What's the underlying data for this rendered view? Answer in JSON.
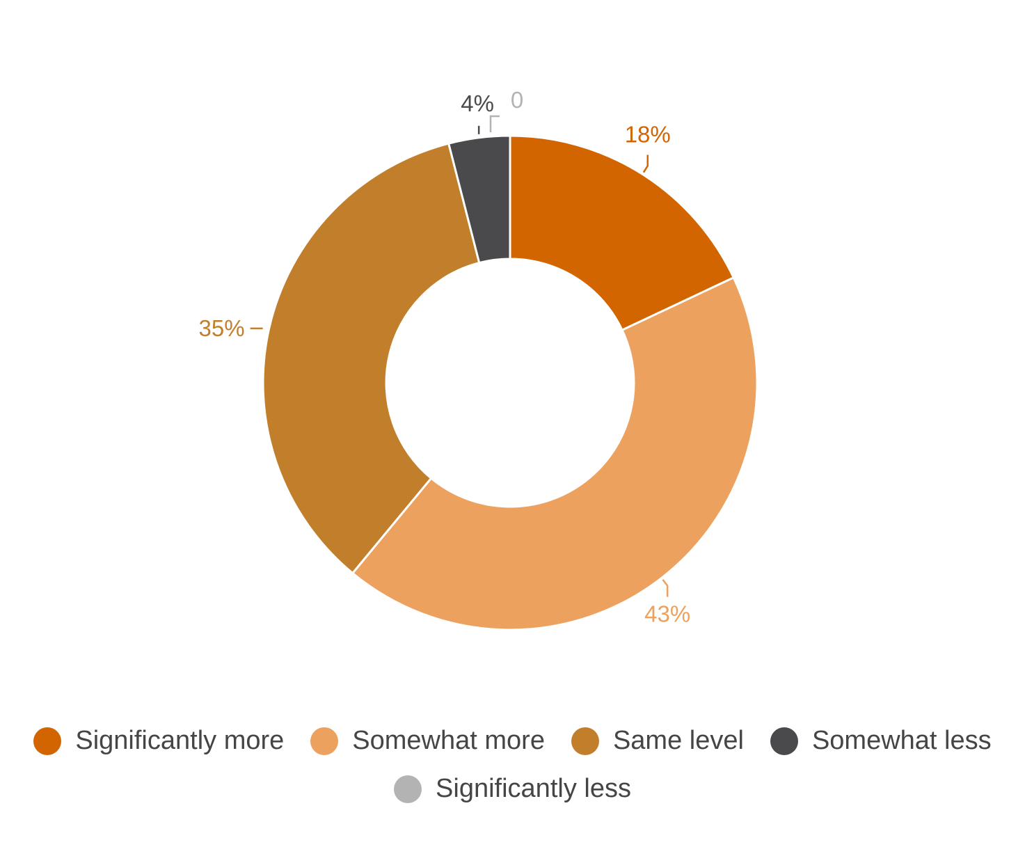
{
  "chart_data": {
    "type": "pie",
    "variant": "donut",
    "title": "",
    "slices": [
      {
        "name": "Significantly more",
        "value": 18,
        "label": "18%",
        "color": "#D36500"
      },
      {
        "name": "Somewhat more",
        "value": 43,
        "label": "43%",
        "color": "#ECA15E"
      },
      {
        "name": "Same level",
        "value": 35,
        "label": "35%",
        "color": "#C17F2C"
      },
      {
        "name": "Somewhat less",
        "value": 4,
        "label": "4%",
        "color": "#4A4A4C"
      },
      {
        "name": "Significantly less",
        "value": 0,
        "label": "0",
        "color": "#B3B3B3"
      }
    ],
    "legend": {
      "position": "bottom",
      "items": [
        {
          "label": "Significantly more",
          "color": "#D36500"
        },
        {
          "label": "Somewhat more",
          "color": "#ECA15E"
        },
        {
          "label": "Same level",
          "color": "#C17F2C"
        },
        {
          "label": "Somewhat less",
          "color": "#4A4A4C"
        },
        {
          "label": "Significantly less",
          "color": "#B3B3B3"
        }
      ]
    }
  }
}
